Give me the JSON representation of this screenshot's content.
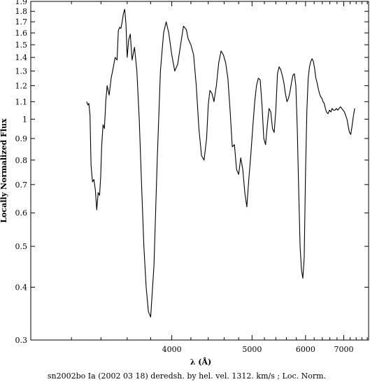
{
  "chart_data": {
    "type": "line",
    "title": "",
    "caption": "sn2002bo Ia (2002 03 18) deredsh. by hel. vel.  1312. km/s ;  Loc. Norm.",
    "xlabel": "λ (Å)",
    "ylabel": "Locally Normalized Flux",
    "x_scale": "reciprocal",
    "y_scale": "log",
    "xlim": [
      2960,
      7850
    ],
    "ylim": [
      0.3,
      1.9
    ],
    "x_ticks": [
      4000,
      5000,
      6000,
      7000
    ],
    "x_tick_labels": [
      "4000",
      "5000",
      "6000",
      "7000"
    ],
    "y_ticks": [
      0.3,
      0.4,
      0.5,
      0.6,
      0.7,
      0.8,
      0.9,
      1,
      1.1,
      1.2,
      1.3,
      1.4,
      1.5,
      1.6,
      1.7,
      1.8,
      1.9
    ],
    "y_tick_labels": [
      "0.3",
      "0.4",
      "0.5",
      "0.6",
      "0.7",
      "0.8",
      "0.9",
      "1",
      "1.1",
      "1.2",
      "1.3",
      "1.4",
      "1.5",
      "1.6",
      "1.7",
      "1.8",
      "1.9"
    ],
    "grid": false,
    "series": [
      {
        "color": "#000000",
        "x": [
          3300,
          3308,
          3315,
          3323,
          3330,
          3340,
          3350,
          3360,
          3370,
          3380,
          3390,
          3398,
          3405,
          3415,
          3425,
          3435,
          3445,
          3460,
          3475,
          3490,
          3505,
          3520,
          3530,
          3540,
          3550,
          3560,
          3570,
          3580,
          3590,
          3600,
          3612,
          3625,
          3640,
          3660,
          3680,
          3700,
          3720,
          3740,
          3760,
          3780,
          3800,
          3830,
          3860,
          3890,
          3920,
          3945,
          3970,
          4000,
          4030,
          4060,
          4090,
          4120,
          4150,
          4170,
          4200,
          4230,
          4260,
          4290,
          4320,
          4350,
          4380,
          4400,
          4420,
          4445,
          4470,
          4500,
          4530,
          4560,
          4590,
          4620,
          4650,
          4680,
          4710,
          4740,
          4770,
          4800,
          4830,
          4860,
          4890,
          4920,
          4950,
          4980,
          5010,
          5040,
          5070,
          5100,
          5130,
          5160,
          5190,
          5220,
          5250,
          5280,
          5310,
          5340,
          5370,
          5400,
          5430,
          5460,
          5490,
          5520,
          5550,
          5580,
          5610,
          5640,
          5670,
          5700,
          5730,
          5760,
          5790,
          5820,
          5850,
          5880,
          5910,
          5940,
          5970,
          6000,
          6030,
          6060,
          6090,
          6120,
          6150,
          6180,
          6210,
          6240,
          6270,
          6300,
          6330,
          6360,
          6390,
          6420,
          6450,
          6480,
          6510,
          6550,
          6590,
          6630,
          6660,
          6700,
          6740,
          6780,
          6820,
          6860,
          6900,
          6940,
          6980,
          7020,
          7060,
          7100,
          7140,
          7180,
          7220,
          7260,
          7300,
          7350
        ],
        "y": [
          1.1,
          1.08,
          1.09,
          1.02,
          0.78,
          0.71,
          0.72,
          0.68,
          0.61,
          0.67,
          0.66,
          0.73,
          0.86,
          0.97,
          0.95,
          1.1,
          1.2,
          1.14,
          1.25,
          1.32,
          1.4,
          1.38,
          1.62,
          1.65,
          1.64,
          1.7,
          1.78,
          1.82,
          1.68,
          1.4,
          1.54,
          1.59,
          1.38,
          1.48,
          1.3,
          1.0,
          0.7,
          0.5,
          0.4,
          0.35,
          0.34,
          0.45,
          0.8,
          1.3,
          1.6,
          1.7,
          1.6,
          1.42,
          1.3,
          1.35,
          1.5,
          1.66,
          1.63,
          1.55,
          1.5,
          1.42,
          1.2,
          0.95,
          0.82,
          0.8,
          0.9,
          1.08,
          1.17,
          1.15,
          1.1,
          1.2,
          1.36,
          1.45,
          1.42,
          1.36,
          1.25,
          1.05,
          0.86,
          0.87,
          0.76,
          0.74,
          0.81,
          0.76,
          0.67,
          0.62,
          0.72,
          0.82,
          0.95,
          1.09,
          1.2,
          1.25,
          1.24,
          1.08,
          0.9,
          0.87,
          0.97,
          1.06,
          1.04,
          0.95,
          0.93,
          1.05,
          1.28,
          1.33,
          1.31,
          1.27,
          1.22,
          1.15,
          1.1,
          1.12,
          1.16,
          1.22,
          1.27,
          1.28,
          1.2,
          0.95,
          0.68,
          0.5,
          0.44,
          0.42,
          0.47,
          0.75,
          1.05,
          1.25,
          1.33,
          1.37,
          1.39,
          1.37,
          1.32,
          1.25,
          1.22,
          1.18,
          1.15,
          1.13,
          1.12,
          1.1,
          1.09,
          1.06,
          1.04,
          1.03,
          1.05,
          1.04,
          1.06,
          1.05,
          1.05,
          1.06,
          1.05,
          1.06,
          1.07,
          1.06,
          1.05,
          1.04,
          1.02,
          1.0,
          0.96,
          0.93,
          0.92,
          0.96,
          1.01,
          1.06
        ]
      }
    ]
  }
}
